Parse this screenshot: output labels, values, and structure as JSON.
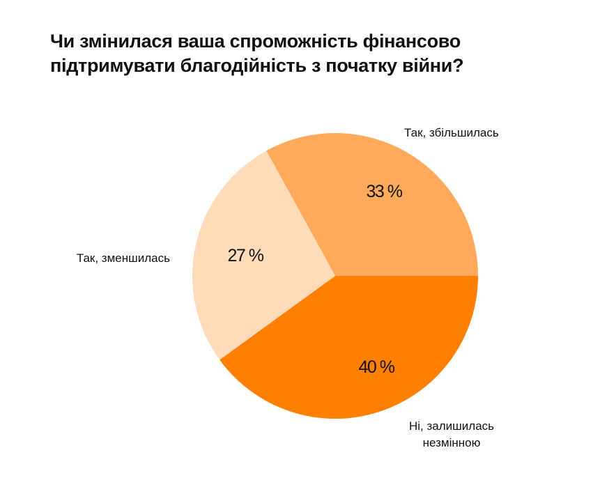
{
  "chart_data": {
    "type": "pie",
    "title": "Чи змінилася ваша спроможність фінансово підтримувати благодійність з початку війни?",
    "slices": [
      {
        "label": "Так, збільшилась",
        "label_lines": [
          "Так, збільшилась"
        ],
        "value": 33,
        "value_label": "33 %",
        "color": "#FFAA5A"
      },
      {
        "label": "Ні, залишилась незмінною",
        "label_lines": [
          "Ні, залишилась",
          "незмінною"
        ],
        "value": 40,
        "value_label": "40 %",
        "color": "#FF7F00"
      },
      {
        "label": "Так, зменшилась",
        "label_lines": [
          "Так, зменшилась"
        ],
        "value": 27,
        "value_label": "27 %",
        "color": "#FFDBBA"
      }
    ],
    "start_angle_deg": -28.8,
    "direction": "clockwise"
  }
}
